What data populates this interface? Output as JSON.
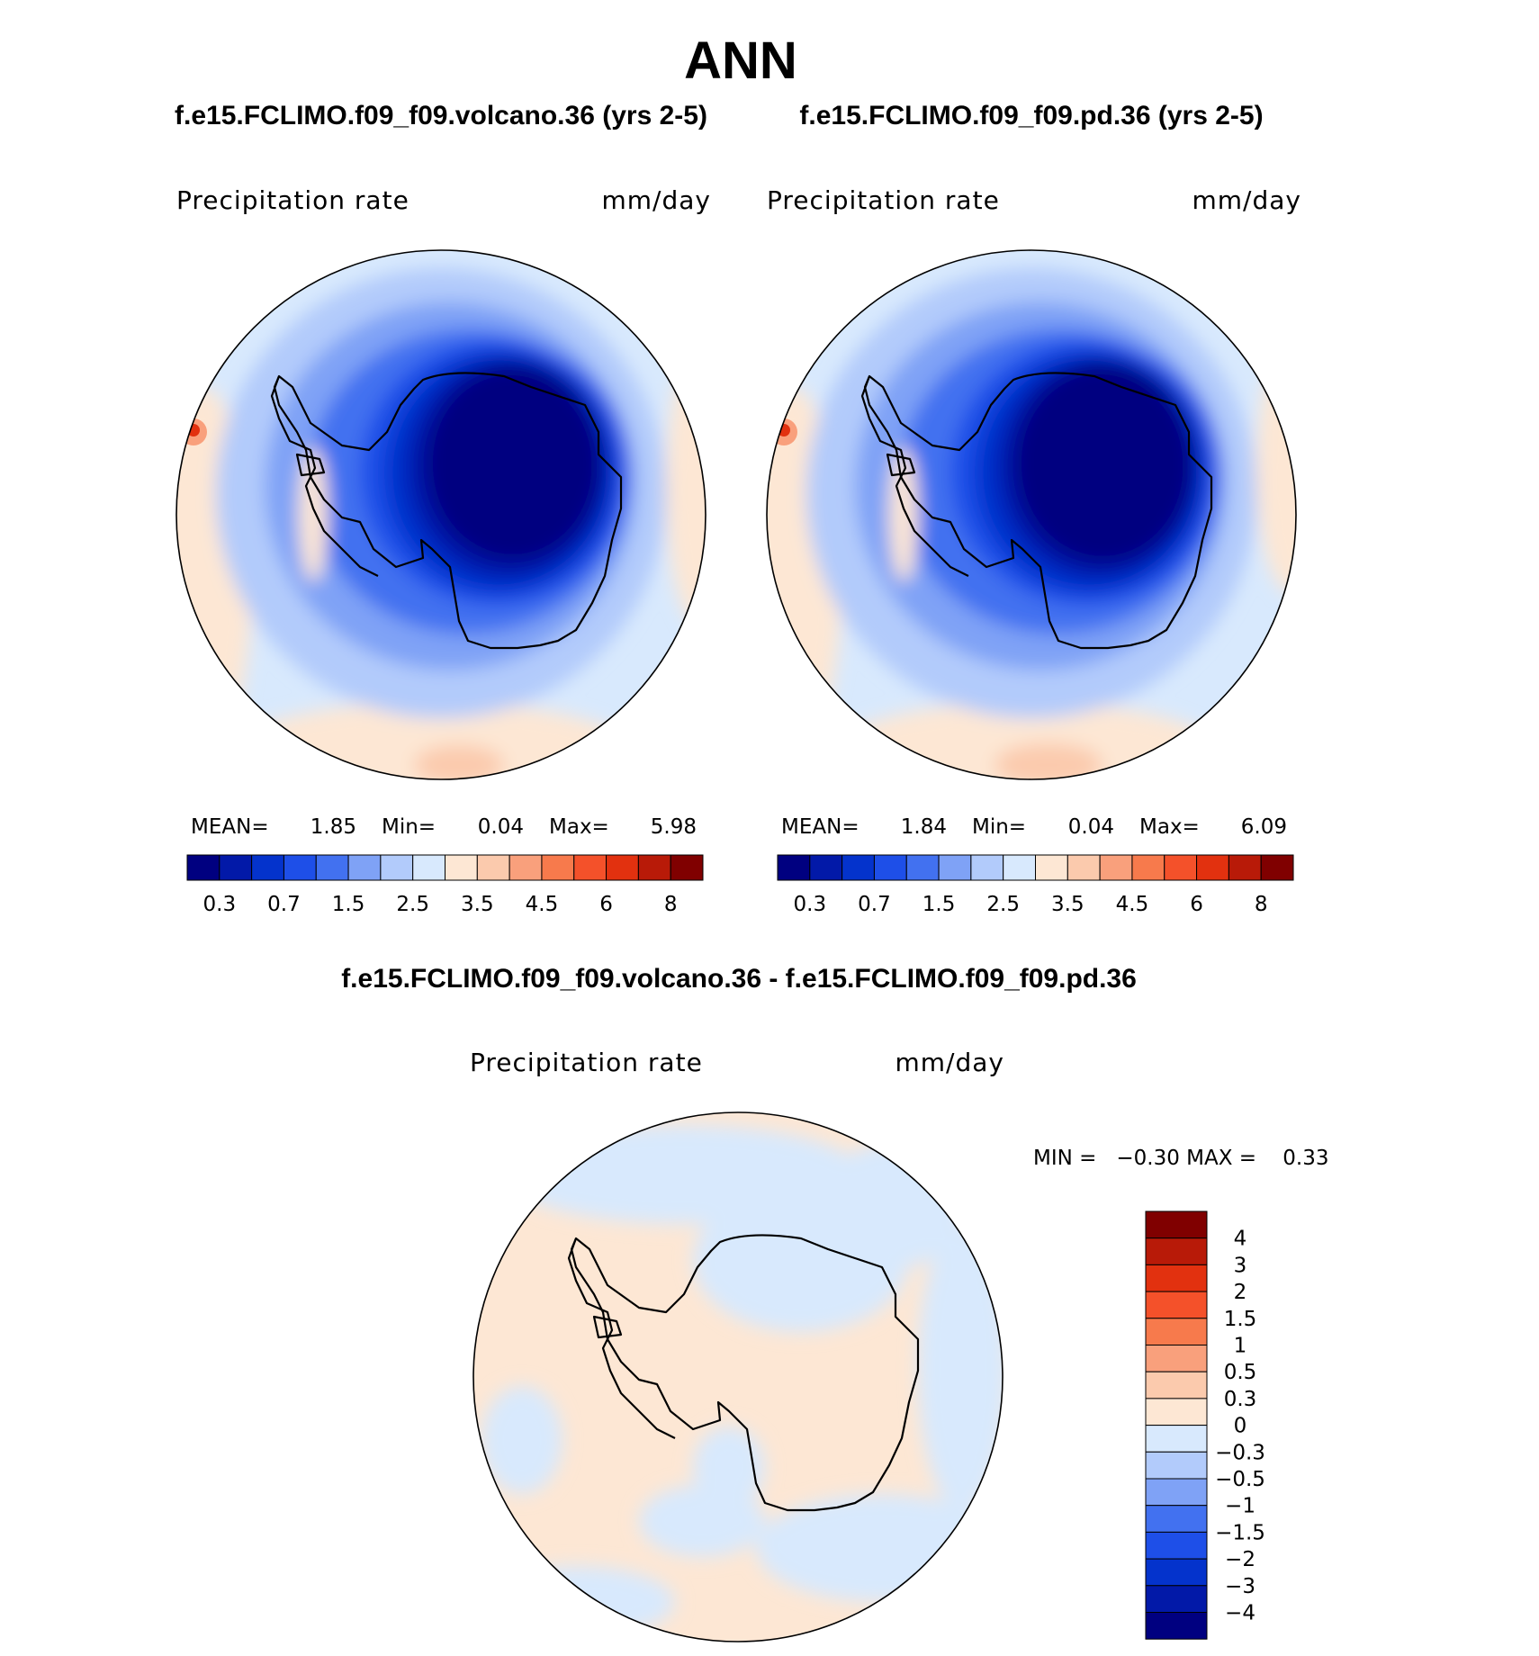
{
  "title": "ANN",
  "colors": {
    "precip": [
      "#000080",
      "#0219a8",
      "#0433cc",
      "#1e4fe8",
      "#4271f0",
      "#7fa2f6",
      "#b2cbfb",
      "#d8e9fd",
      "#fde7d4",
      "#fbcaad",
      "#f9a07c",
      "#f77a4c",
      "#f4512a",
      "#e2310f",
      "#b81a08",
      "#800000"
    ],
    "diff": [
      "#000080",
      "#0219a8",
      "#0433cc",
      "#1e4fe8",
      "#4271f0",
      "#7fa2f6",
      "#b2cbfb",
      "#d8e9fd",
      "#fde7d4",
      "#fbcaad",
      "#f9a07c",
      "#f77a4c",
      "#f4512a",
      "#e2310f",
      "#b81a08",
      "#800000"
    ]
  },
  "panels": [
    {
      "case": "f.e15.FCLIMO.f09_f09.volcano.36 (yrs 2-5)",
      "variable": "Precipitation  rate",
      "units": "mm/day",
      "mean_label": "MEAN=",
      "mean": "1.85",
      "min_label": "Min=",
      "min": "0.04",
      "max_label": "Max=",
      "max": "5.98",
      "colorbar_ticks": [
        "0.3",
        "0.7",
        "1.5",
        "2.5",
        "3.5",
        "4.5",
        "6",
        "8"
      ]
    },
    {
      "case": "f.e15.FCLIMO.f09_f09.pd.36 (yrs 2-5)",
      "variable": "Precipitation  rate",
      "units": "mm/day",
      "mean_label": "MEAN=",
      "mean": "1.84",
      "min_label": "Min=",
      "min": "0.04",
      "max_label": "Max=",
      "max": "6.09",
      "colorbar_ticks": [
        "0.3",
        "0.7",
        "1.5",
        "2.5",
        "3.5",
        "4.5",
        "6",
        "8"
      ]
    }
  ],
  "difference": {
    "title": "f.e15.FCLIMO.f09_f09.volcano.36 - f.e15.FCLIMO.f09_f09.pd.36",
    "variable": "Precipitation  rate",
    "units": "mm/day",
    "minmax": "MIN =   −0.30 MAX =    0.33",
    "colorbar_ticks": [
      "4",
      "3",
      "2",
      "1.5",
      "1",
      "0.5",
      "0.3",
      "0",
      "−0.3",
      "−0.5",
      "−1",
      "−1.5",
      "−2",
      "−3",
      "−4"
    ]
  }
}
